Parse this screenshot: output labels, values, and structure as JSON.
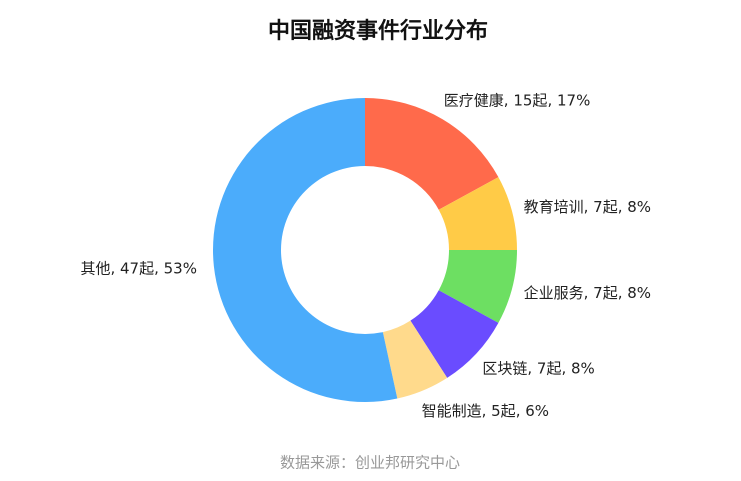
{
  "chart_data": {
    "type": "donut",
    "title": "中国融资事件行业分布",
    "categories": [
      "医疗健康",
      "教育培训",
      "企业服务",
      "区块链",
      "智能制造",
      "其他"
    ],
    "values": [
      15,
      7,
      7,
      7,
      5,
      47
    ],
    "value_labels": [
      "15起",
      "7起",
      "7起",
      "7起",
      "5起",
      "47起"
    ],
    "percents": [
      17,
      8,
      8,
      8,
      6,
      53
    ],
    "percent_labels": [
      "17%",
      "8%",
      "8%",
      "8%",
      "6%",
      "53%"
    ],
    "colors": [
      "#ff6a4b",
      "#ffcb47",
      "#6ddf62",
      "#6a4cff",
      "#ffda8c",
      "#4bacfb"
    ],
    "source": "数据来源：创业邦研究中心"
  }
}
